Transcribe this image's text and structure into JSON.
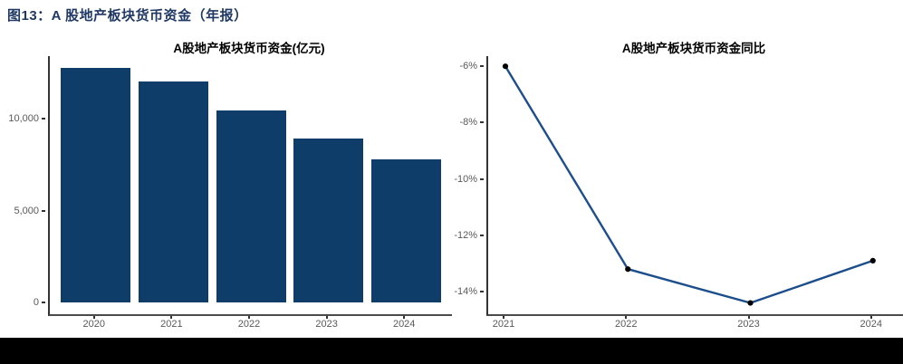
{
  "header": {
    "title": "图13：A 股地产板块货币资金（年报）"
  },
  "colors": {
    "header_text": "#1F3864",
    "bar_fill": "#0F3D6A",
    "line_stroke": "#1C4E8C",
    "marker_fill": "#000000",
    "axis_line": "#4A4A4A",
    "tick_text": "#595959",
    "footer_bar": "#000000",
    "background": "#FFFFFF"
  },
  "chart_data": [
    {
      "id": "money-bar",
      "type": "bar",
      "title": "A股地产板块货币资金(亿元)",
      "categories": [
        "2020",
        "2021",
        "2022",
        "2023",
        "2024"
      ],
      "values": [
        12800,
        12050,
        10450,
        8950,
        7800
      ],
      "unit": "亿元",
      "ylim": [
        0,
        13420
      ],
      "yticks": [
        0,
        5000,
        10000
      ],
      "ytick_labels": [
        "0",
        "5,000",
        "10,000"
      ],
      "grid": false,
      "legend": "none"
    },
    {
      "id": "money-yoy-line",
      "type": "line",
      "title": "A股地产板块货币资金同比",
      "categories": [
        "2021",
        "2022",
        "2023",
        "2024"
      ],
      "values": [
        -6.0,
        -13.2,
        -14.4,
        -12.9
      ],
      "unit": "%",
      "ylim": [
        -14.8,
        -5.64
      ],
      "yticks": [
        -6,
        -8,
        -10,
        -12,
        -14
      ],
      "ytick_labels": [
        "-6%",
        "-8%",
        "-10%",
        "-12%",
        "-14%"
      ],
      "grid": false,
      "legend": "none"
    }
  ]
}
